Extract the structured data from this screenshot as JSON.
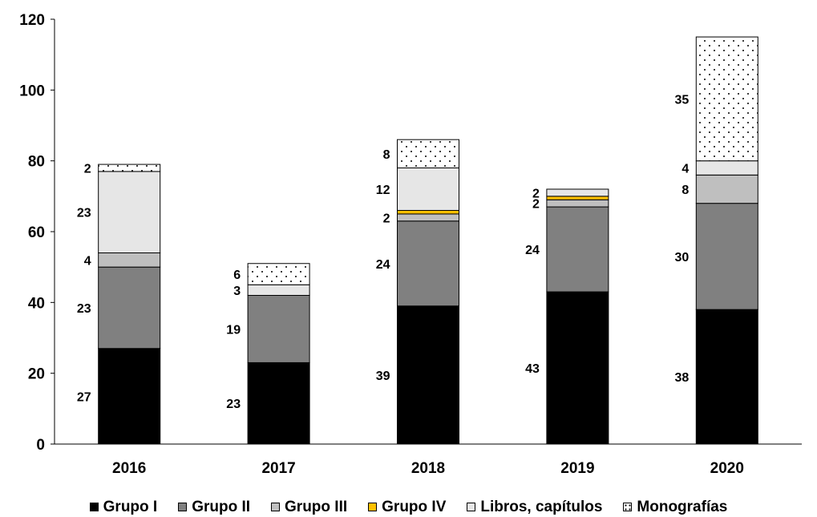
{
  "chart_data": {
    "type": "bar",
    "stacked": true,
    "categories": [
      "2016",
      "2017",
      "2018",
      "2019",
      "2020"
    ],
    "ylim": [
      0,
      120
    ],
    "yticks": [
      0,
      20,
      40,
      60,
      80,
      100,
      120
    ],
    "grid": false,
    "legend_position": "bottom",
    "series": [
      {
        "name": "Grupo I",
        "color": "#000000",
        "pattern": "solid",
        "values": [
          27,
          23,
          39,
          43,
          38
        ],
        "labels": [
          "27",
          "23",
          "39",
          "43",
          "38"
        ]
      },
      {
        "name": "Grupo II",
        "color": "#808080",
        "pattern": "solid",
        "values": [
          23,
          19,
          24,
          24,
          30
        ],
        "labels": [
          "23",
          "19",
          "24",
          "24",
          "30"
        ]
      },
      {
        "name": "Grupo III",
        "color": "#bfbfbf",
        "pattern": "solid",
        "values": [
          4,
          0,
          2,
          2,
          8
        ],
        "labels": [
          "4",
          "",
          "2",
          "2",
          "8"
        ]
      },
      {
        "name": "Grupo IV",
        "color": "#ffc000",
        "pattern": "solid",
        "values": [
          0,
          0,
          1,
          1,
          0
        ],
        "labels": [
          "",
          "",
          "",
          "",
          ""
        ]
      },
      {
        "name": "Libros, capítulos",
        "color": "#e6e6e6",
        "pattern": "solid",
        "values": [
          23,
          3,
          12,
          2,
          4
        ],
        "labels": [
          "23",
          "3",
          "12",
          "2",
          "4"
        ]
      },
      {
        "name": "Monografías",
        "color": "#ffffff",
        "pattern": "dots",
        "values": [
          2,
          6,
          8,
          0,
          35
        ],
        "labels": [
          "2",
          "6",
          "8",
          "",
          "35"
        ]
      }
    ]
  }
}
